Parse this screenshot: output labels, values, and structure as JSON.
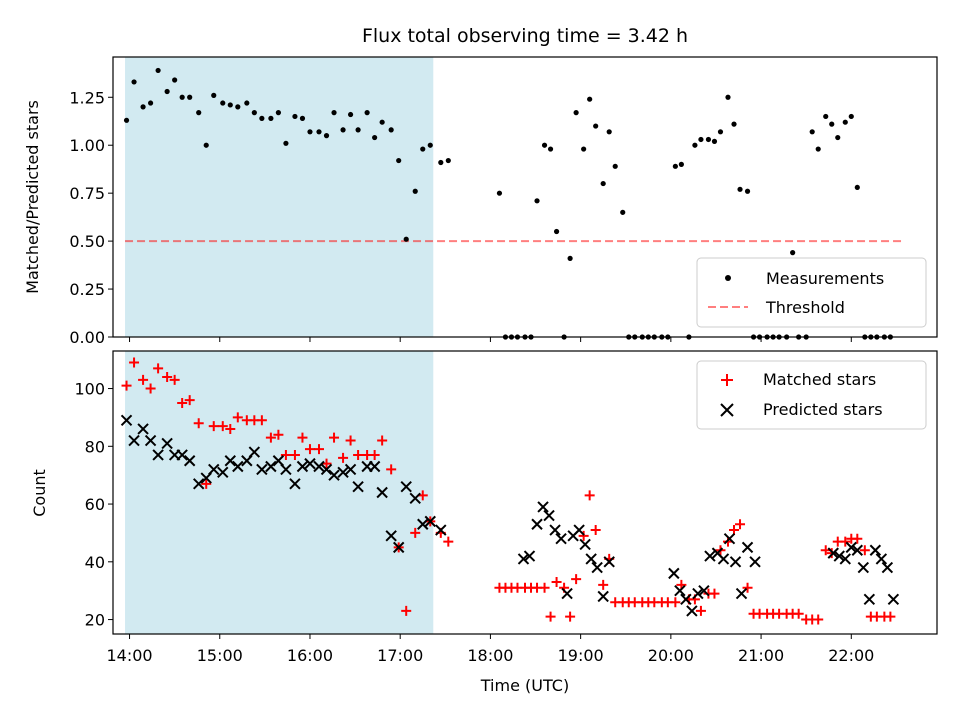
{
  "chart_data": [
    {
      "type": "scatter",
      "title": "Flux total observing time = 3.42 h",
      "xlabel": "",
      "ylabel": "Matched/Predicted stars",
      "xlim": [
        "13:49",
        "22:57"
      ],
      "ylim": [
        0,
        1.46
      ],
      "yticks": [
        "0.00",
        "0.25",
        "0.50",
        "0.75",
        "1.00",
        "1.25"
      ],
      "shaded_span": [
        "13:57",
        "17:22"
      ],
      "shade_color": "#add8e6",
      "threshold": 0.5,
      "legend": {
        "position": "lower-right",
        "entries": [
          "Measurements",
          "Threshold"
        ]
      },
      "series": [
        {
          "name": "Measurements",
          "color": "#000000",
          "marker": "dot",
          "x": [
            "13:58",
            "14:03",
            "14:09",
            "14:14",
            "14:19",
            "14:25",
            "14:30",
            "14:35",
            "14:40",
            "14:46",
            "14:51",
            "14:56",
            "15:02",
            "15:07",
            "15:12",
            "15:18",
            "15:23",
            "15:28",
            "15:34",
            "15:39",
            "15:44",
            "15:50",
            "15:55",
            "16:00",
            "16:06",
            "16:11",
            "16:16",
            "16:22",
            "16:27",
            "16:32",
            "16:38",
            "16:43",
            "16:48",
            "16:54",
            "16:59",
            "17:04",
            "17:10",
            "17:15",
            "17:20",
            "17:27",
            "17:32",
            "18:06",
            "18:10",
            "18:14",
            "18:18",
            "18:23",
            "18:27",
            "18:31",
            "18:36",
            "18:40",
            "18:44",
            "18:49",
            "18:53",
            "18:57",
            "19:02",
            "19:06",
            "19:10",
            "19:15",
            "19:19",
            "19:23",
            "19:28",
            "19:32",
            "19:36",
            "19:41",
            "19:45",
            "19:49",
            "19:54",
            "19:58",
            "20:03",
            "20:07",
            "20:12",
            "20:16",
            "20:20",
            "20:25",
            "20:29",
            "20:33",
            "20:38",
            "20:42",
            "20:46",
            "20:51",
            "20:55",
            "20:59",
            "21:04",
            "21:08",
            "21:12",
            "21:17",
            "21:21",
            "21:25",
            "21:30",
            "21:34",
            "21:38",
            "21:43",
            "21:47",
            "21:51",
            "21:56",
            "22:00",
            "22:04",
            "22:09",
            "22:13",
            "22:17",
            "22:22",
            "22:26"
          ],
          "y": [
            1.13,
            1.33,
            1.2,
            1.22,
            1.39,
            1.28,
            1.34,
            1.25,
            1.25,
            1.17,
            1.0,
            1.26,
            1.22,
            1.21,
            1.2,
            1.22,
            1.17,
            1.14,
            1.14,
            1.17,
            1.01,
            1.15,
            1.14,
            1.07,
            1.07,
            1.05,
            1.17,
            1.08,
            1.16,
            1.08,
            1.17,
            1.04,
            1.12,
            1.08,
            0.92,
            0.51,
            0.76,
            0.98,
            1.0,
            0.91,
            0.92,
            0.75,
            0.0,
            0.0,
            0.0,
            0.0,
            0.0,
            0.71,
            1.0,
            0.98,
            0.55,
            0.0,
            0.41,
            1.17,
            0.98,
            1.24,
            1.1,
            0.8,
            1.07,
            0.89,
            0.65,
            0.0,
            0.0,
            0.0,
            0.0,
            0.0,
            0.0,
            0.0,
            0.89,
            0.9,
            0.0,
            1.0,
            1.03,
            1.03,
            1.02,
            1.07,
            1.25,
            1.11,
            0.77,
            0.76,
            0.0,
            0.0,
            0.0,
            0.0,
            0.0,
            0.0,
            0.44,
            0.0,
            0.0,
            1.07,
            0.98,
            1.15,
            1.11,
            1.04,
            1.12,
            1.15,
            0.78,
            0.0,
            0.0,
            0.0,
            0.0,
            0.0
          ]
        }
      ]
    },
    {
      "type": "scatter",
      "title": "",
      "xlabel": "Time (UTC)",
      "ylabel": "Count",
      "xlim": [
        "13:49",
        "22:57"
      ],
      "ylim": [
        15,
        113
      ],
      "yticks": [
        "20",
        "40",
        "60",
        "80",
        "100"
      ],
      "xticks": [
        "14:00",
        "15:00",
        "16:00",
        "17:00",
        "18:00",
        "19:00",
        "20:00",
        "21:00",
        "22:00"
      ],
      "shaded_span": [
        "13:57",
        "17:22"
      ],
      "legend": {
        "position": "upper-right",
        "entries": [
          "Matched stars",
          "Predicted stars"
        ]
      },
      "series": [
        {
          "name": "Matched stars",
          "color": "#ff0000",
          "marker": "plus",
          "x": [
            "13:58",
            "14:03",
            "14:09",
            "14:14",
            "14:19",
            "14:25",
            "14:30",
            "14:35",
            "14:40",
            "14:46",
            "14:51",
            "14:56",
            "15:02",
            "15:07",
            "15:12",
            "15:18",
            "15:23",
            "15:28",
            "15:34",
            "15:39",
            "15:44",
            "15:50",
            "15:55",
            "16:00",
            "16:06",
            "16:11",
            "16:16",
            "16:22",
            "16:27",
            "16:32",
            "16:38",
            "16:43",
            "16:48",
            "16:54",
            "16:59",
            "17:04",
            "17:10",
            "17:15",
            "17:20",
            "17:27",
            "17:32",
            "18:06",
            "18:10",
            "18:14",
            "18:18",
            "18:23",
            "18:27",
            "18:31",
            "18:36",
            "18:40",
            "18:44",
            "18:49",
            "18:53",
            "18:57",
            "19:02",
            "19:06",
            "19:10",
            "19:15",
            "19:19",
            "19:23",
            "19:28",
            "19:32",
            "19:36",
            "19:41",
            "19:45",
            "19:49",
            "19:54",
            "19:58",
            "20:03",
            "20:07",
            "20:12",
            "20:16",
            "20:20",
            "20:25",
            "20:29",
            "20:33",
            "20:38",
            "20:42",
            "20:46",
            "20:51",
            "20:55",
            "20:59",
            "21:04",
            "21:08",
            "21:12",
            "21:17",
            "21:21",
            "21:25",
            "21:30",
            "21:34",
            "21:38",
            "21:43",
            "21:47",
            "21:51",
            "21:56",
            "22:00",
            "22:04",
            "22:09",
            "22:13",
            "22:17",
            "22:22",
            "22:26"
          ],
          "y": [
            101,
            109,
            103,
            100,
            107,
            104,
            103,
            95,
            96,
            88,
            67,
            87,
            87,
            86,
            90,
            89,
            89,
            89,
            83,
            84,
            77,
            77,
            83,
            79,
            79,
            74,
            83,
            76,
            82,
            77,
            77,
            77,
            82,
            72,
            45,
            23,
            50,
            63,
            54,
            50,
            47,
            31,
            31,
            31,
            31,
            31,
            31,
            31,
            31,
            21,
            33,
            31,
            21,
            34,
            49,
            63,
            51,
            32,
            41,
            26,
            26,
            26,
            26,
            26,
            26,
            26,
            26,
            26,
            26,
            32,
            27,
            27,
            23,
            29,
            29,
            44,
            47,
            51,
            53,
            31,
            22,
            22,
            22,
            22,
            22,
            22,
            22,
            22,
            20,
            20,
            20,
            44,
            43,
            47,
            47,
            48,
            48,
            44,
            21,
            21,
            21,
            21
          ]
        },
        {
          "name": "Predicted stars",
          "color": "#000000",
          "marker": "x",
          "x": [
            "13:58",
            "14:03",
            "14:09",
            "14:14",
            "14:19",
            "14:25",
            "14:30",
            "14:35",
            "14:40",
            "14:46",
            "14:51",
            "14:56",
            "15:02",
            "15:07",
            "15:12",
            "15:18",
            "15:23",
            "15:28",
            "15:34",
            "15:39",
            "15:44",
            "15:50",
            "15:55",
            "16:00",
            "16:06",
            "16:11",
            "16:16",
            "16:22",
            "16:27",
            "16:32",
            "16:38",
            "16:43",
            "16:48",
            "16:54",
            "16:59",
            "17:04",
            "17:10",
            "17:15",
            "17:20",
            "17:27",
            "18:22",
            "18:26",
            "18:31",
            "18:35",
            "18:39",
            "18:43",
            "18:47",
            "18:51",
            "18:55",
            "18:59",
            "19:03",
            "19:07",
            "19:11",
            "19:15",
            "19:19",
            "20:02",
            "20:06",
            "20:10",
            "20:14",
            "20:18",
            "20:22",
            "20:26",
            "20:31",
            "20:35",
            "20:39",
            "20:43",
            "20:47",
            "20:51",
            "20:56",
            "21:48",
            "21:52",
            "21:56",
            "22:00",
            "22:04",
            "22:08",
            "22:12",
            "22:16",
            "22:20",
            "22:24",
            "22:28"
          ],
          "y": [
            89,
            82,
            86,
            82,
            77,
            81,
            77,
            77,
            75,
            67,
            69,
            72,
            71,
            75,
            73,
            75,
            78,
            72,
            73,
            75,
            72,
            67,
            73,
            74,
            73,
            72,
            70,
            71,
            72,
            66,
            73,
            73,
            64,
            49,
            45,
            66,
            62,
            53,
            54,
            51,
            41,
            42,
            53,
            59,
            56,
            51,
            48,
            29,
            49,
            51,
            46,
            41,
            38,
            28,
            40,
            36,
            30,
            27,
            23,
            29,
            30,
            42,
            43,
            41,
            48,
            40,
            29,
            45,
            40,
            43,
            42,
            41,
            45,
            44,
            38,
            27,
            44,
            41,
            38,
            27
          ]
        }
      ]
    }
  ]
}
